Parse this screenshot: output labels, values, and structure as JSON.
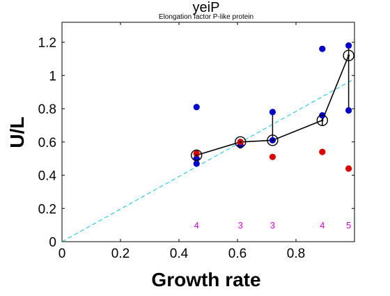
{
  "chart_data": {
    "type": "scatter",
    "title": "yeiP",
    "subtitle": "Elongation factor P-like protein",
    "xlabel": "Growth rate",
    "ylabel": "U/L",
    "xlim": [
      0,
      1.0
    ],
    "ylim": [
      0,
      1.32
    ],
    "x_ticks": [
      0,
      0.2,
      0.4,
      0.6,
      0.8
    ],
    "x_tick_labels": [
      "0",
      "0.2",
      "0.4",
      "0.6",
      "0.8"
    ],
    "y_ticks": [
      0,
      0.2,
      0.4,
      0.6,
      0.8,
      1.0,
      1.2
    ],
    "y_tick_labels": [
      "0",
      "0.2",
      "0.4",
      "0.6",
      "0.8",
      "1",
      "1.2"
    ],
    "grid": false,
    "series": [
      {
        "color": "#0000cc",
        "points": [
          {
            "x": 0.46,
            "y": 0.81
          },
          {
            "x": 0.46,
            "y": 0.5
          },
          {
            "x": 0.46,
            "y": 0.47
          },
          {
            "x": 0.61,
            "y": 0.6
          },
          {
            "x": 0.61,
            "y": 0.58
          },
          {
            "x": 0.72,
            "y": 0.78
          },
          {
            "x": 0.72,
            "y": 0.61
          },
          {
            "x": 0.89,
            "y": 1.16
          },
          {
            "x": 0.89,
            "y": 0.76
          },
          {
            "x": 0.98,
            "y": 1.18
          },
          {
            "x": 0.98,
            "y": 0.79
          }
        ]
      },
      {
        "color": "#dd0000",
        "points": [
          {
            "x": 0.46,
            "y": 0.53
          },
          {
            "x": 0.61,
            "y": 0.6
          },
          {
            "x": 0.72,
            "y": 0.51
          },
          {
            "x": 0.89,
            "y": 0.54
          },
          {
            "x": 0.98,
            "y": 0.44
          }
        ]
      }
    ],
    "mean_line": {
      "color": "#000000",
      "points": [
        {
          "x": 0.46,
          "y": 0.52
        },
        {
          "x": 0.61,
          "y": 0.6
        },
        {
          "x": 0.72,
          "y": 0.61
        },
        {
          "x": 0.89,
          "y": 0.73
        },
        {
          "x": 0.98,
          "y": 1.12
        }
      ],
      "error_bars": [
        {
          "x": 0.46,
          "low": 0.49,
          "high": 0.53
        },
        {
          "x": 0.72,
          "low": 0.61,
          "high": 0.78
        },
        {
          "x": 0.89,
          "low": 0.7,
          "high": 0.76
        },
        {
          "x": 0.98,
          "low": 0.79,
          "high": 1.18
        }
      ]
    },
    "fit_line": {
      "color": "#00ccdd",
      "style": "dashed",
      "points": [
        {
          "x": 0,
          "y": 0
        },
        {
          "x": 1.0,
          "y": 0.98
        }
      ]
    },
    "count_annotations": {
      "color": "#dd00dd",
      "y": 0.1,
      "items": [
        {
          "x": 0.46,
          "label": "4"
        },
        {
          "x": 0.61,
          "label": "3"
        },
        {
          "x": 0.72,
          "label": "3"
        },
        {
          "x": 0.89,
          "label": "4"
        },
        {
          "x": 0.98,
          "label": "5"
        }
      ]
    }
  }
}
